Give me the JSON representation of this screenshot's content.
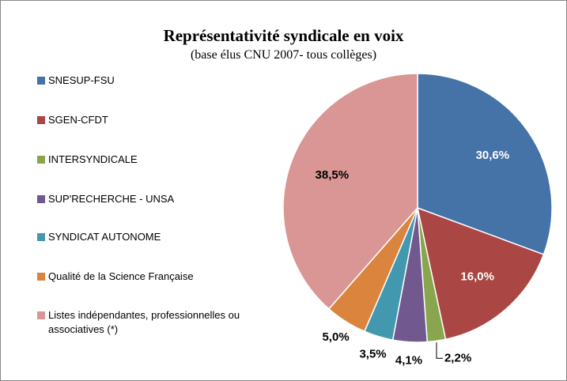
{
  "chart_data": {
    "type": "pie",
    "title": "Représentativité syndicale en voix",
    "subtitle": "(base élus CNU 2007- tous collèges)",
    "categories": [
      "SNESUP-FSU",
      "SGEN-CFDT",
      "INTERSYNDICALE",
      "SUP'RECHERCHE - UNSA",
      "SYNDICAT AUTONOME",
      "Qualité de la Science Française",
      "Listes indépendantes, professionnelles ou associatives (*)"
    ],
    "values": [
      30.6,
      16.0,
      2.2,
      4.1,
      3.5,
      5.0,
      38.5
    ],
    "value_labels": [
      "30,6%",
      "16,0%",
      "2,2%",
      "4,1%",
      "3,5%",
      "5,0%",
      "38,5%"
    ],
    "colors": [
      "#4572a7",
      "#aa4643",
      "#89a54e",
      "#71588f",
      "#4198af",
      "#db843d",
      "#d99694"
    ],
    "legend": "left"
  }
}
